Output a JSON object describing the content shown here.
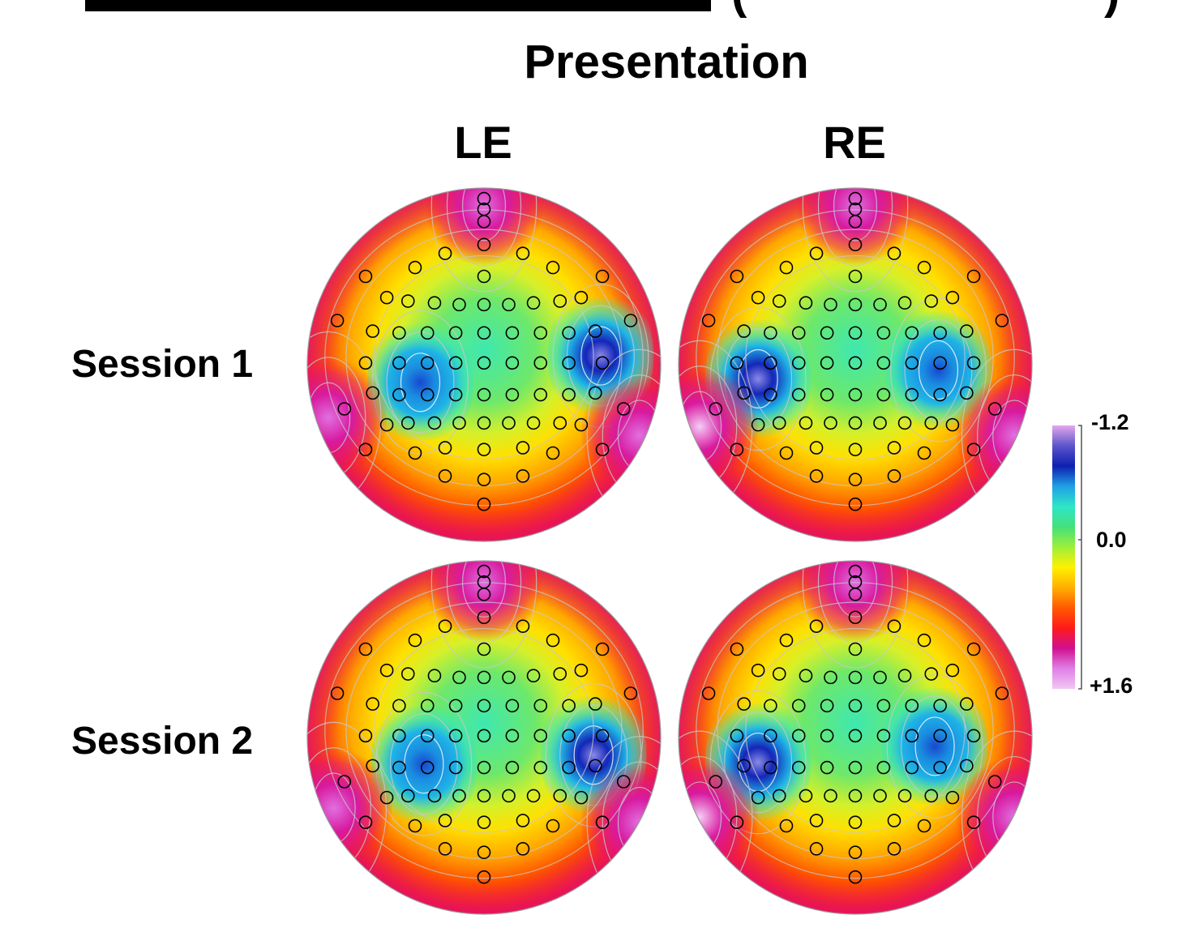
{
  "header": {
    "open_paren": "(",
    "close_paren": ")",
    "title": "Presentation"
  },
  "columns": [
    {
      "label": "LE"
    },
    {
      "label": "RE"
    }
  ],
  "rows": [
    {
      "label": "Session 1"
    },
    {
      "label": "Session 2"
    }
  ],
  "colorbar": {
    "max_label": "-1.2",
    "mid_label": "0.0",
    "min_label": "+1.6",
    "stops": [
      "#e6a6ec",
      "#5b55cc",
      "#0f1fb0",
      "#1fa0e6",
      "#2ee6c8",
      "#44e07a",
      "#9cf03a",
      "#fff000",
      "#ffb000",
      "#ff5a00",
      "#ff1a1a",
      "#d01090",
      "#e080e6",
      "#f2c6f4"
    ]
  },
  "maps": [
    {
      "row": 0,
      "col": 0,
      "blobs": [
        {
          "kind": "neg",
          "u": 0.66,
          "v": -0.05,
          "level": 1.0
        },
        {
          "kind": "neg",
          "u": -0.36,
          "v": 0.1,
          "level": 0.55
        },
        {
          "kind": "pos",
          "u": -0.88,
          "v": 0.3,
          "level": 0.8
        },
        {
          "kind": "pos",
          "u": 0.88,
          "v": 0.4,
          "level": 0.8
        },
        {
          "kind": "pos",
          "u": 0.0,
          "v": -0.9,
          "level": 0.6
        }
      ]
    },
    {
      "row": 0,
      "col": 1,
      "blobs": [
        {
          "kind": "neg",
          "u": -0.55,
          "v": 0.08,
          "level": 1.0
        },
        {
          "kind": "neg",
          "u": 0.47,
          "v": 0.03,
          "level": 0.5
        },
        {
          "kind": "pos",
          "u": -0.88,
          "v": 0.35,
          "level": 0.95
        },
        {
          "kind": "pos",
          "u": 0.9,
          "v": 0.4,
          "level": 0.75
        },
        {
          "kind": "pos",
          "u": 0.0,
          "v": -0.9,
          "level": 0.8
        }
      ]
    },
    {
      "row": 1,
      "col": 0,
      "blobs": [
        {
          "kind": "neg",
          "u": 0.62,
          "v": 0.1,
          "level": 1.0
        },
        {
          "kind": "neg",
          "u": -0.34,
          "v": 0.15,
          "level": 0.55
        },
        {
          "kind": "pos",
          "u": -0.85,
          "v": 0.4,
          "level": 0.8
        },
        {
          "kind": "pos",
          "u": 0.88,
          "v": 0.48,
          "level": 0.8
        },
        {
          "kind": "pos",
          "u": 0.0,
          "v": -0.88,
          "level": 0.6
        }
      ]
    },
    {
      "row": 1,
      "col": 1,
      "blobs": [
        {
          "kind": "neg",
          "u": -0.55,
          "v": 0.14,
          "level": 1.0
        },
        {
          "kind": "neg",
          "u": 0.45,
          "v": 0.05,
          "level": 0.55
        },
        {
          "kind": "pos",
          "u": -0.88,
          "v": 0.45,
          "level": 0.95
        },
        {
          "kind": "pos",
          "u": 0.9,
          "v": 0.45,
          "level": 0.75
        },
        {
          "kind": "pos",
          "u": 0.0,
          "v": -0.88,
          "level": 0.75
        }
      ]
    }
  ]
}
